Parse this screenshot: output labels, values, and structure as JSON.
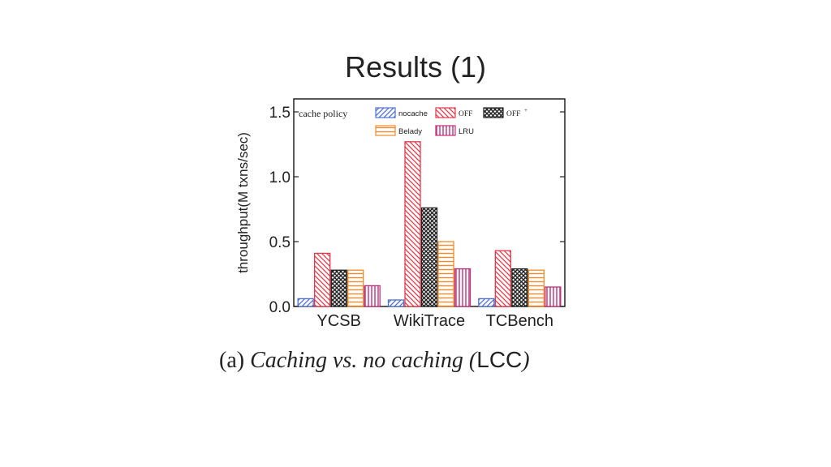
{
  "slide": {
    "title": "Results (1)"
  },
  "caption": {
    "prefix": "(a) ",
    "text": "Caching vs. no caching (",
    "code": "LCC",
    "suffix": ")"
  },
  "chart_data": {
    "type": "bar",
    "ylabel": "throughput(M txns/sec)",
    "xlabel": "",
    "ylim": [
      0,
      1.6
    ],
    "yticks": [
      0.0,
      0.5,
      1.0,
      1.5
    ],
    "ytick_labels": [
      "0.0",
      "0.5",
      "1.0",
      "1.5"
    ],
    "categories": [
      "YCSB",
      "WikiTrace",
      "TCBench"
    ],
    "legend_title": "cache policy",
    "legend_placement": "top",
    "grid": false,
    "series": [
      {
        "name": "nocache",
        "color": "#4f6fd0",
        "pattern": "diag-right",
        "values": [
          0.06,
          0.05,
          0.06
        ]
      },
      {
        "name": "OFF",
        "color": "#e03a4a",
        "pattern": "diag-left",
        "values": [
          0.41,
          1.27,
          0.43
        ]
      },
      {
        "name": "OFF",
        "name_suffix": "+",
        "color": "#222222",
        "pattern": "crosshatch",
        "values": [
          0.28,
          0.76,
          0.29
        ]
      },
      {
        "name": "Belady",
        "color": "#f08a2a",
        "pattern": "horizontal",
        "values": [
          0.28,
          0.5,
          0.28
        ]
      },
      {
        "name": "LRU",
        "color": "#c0307a",
        "pattern": "vertical",
        "values": [
          0.16,
          0.29,
          0.15
        ]
      }
    ]
  }
}
